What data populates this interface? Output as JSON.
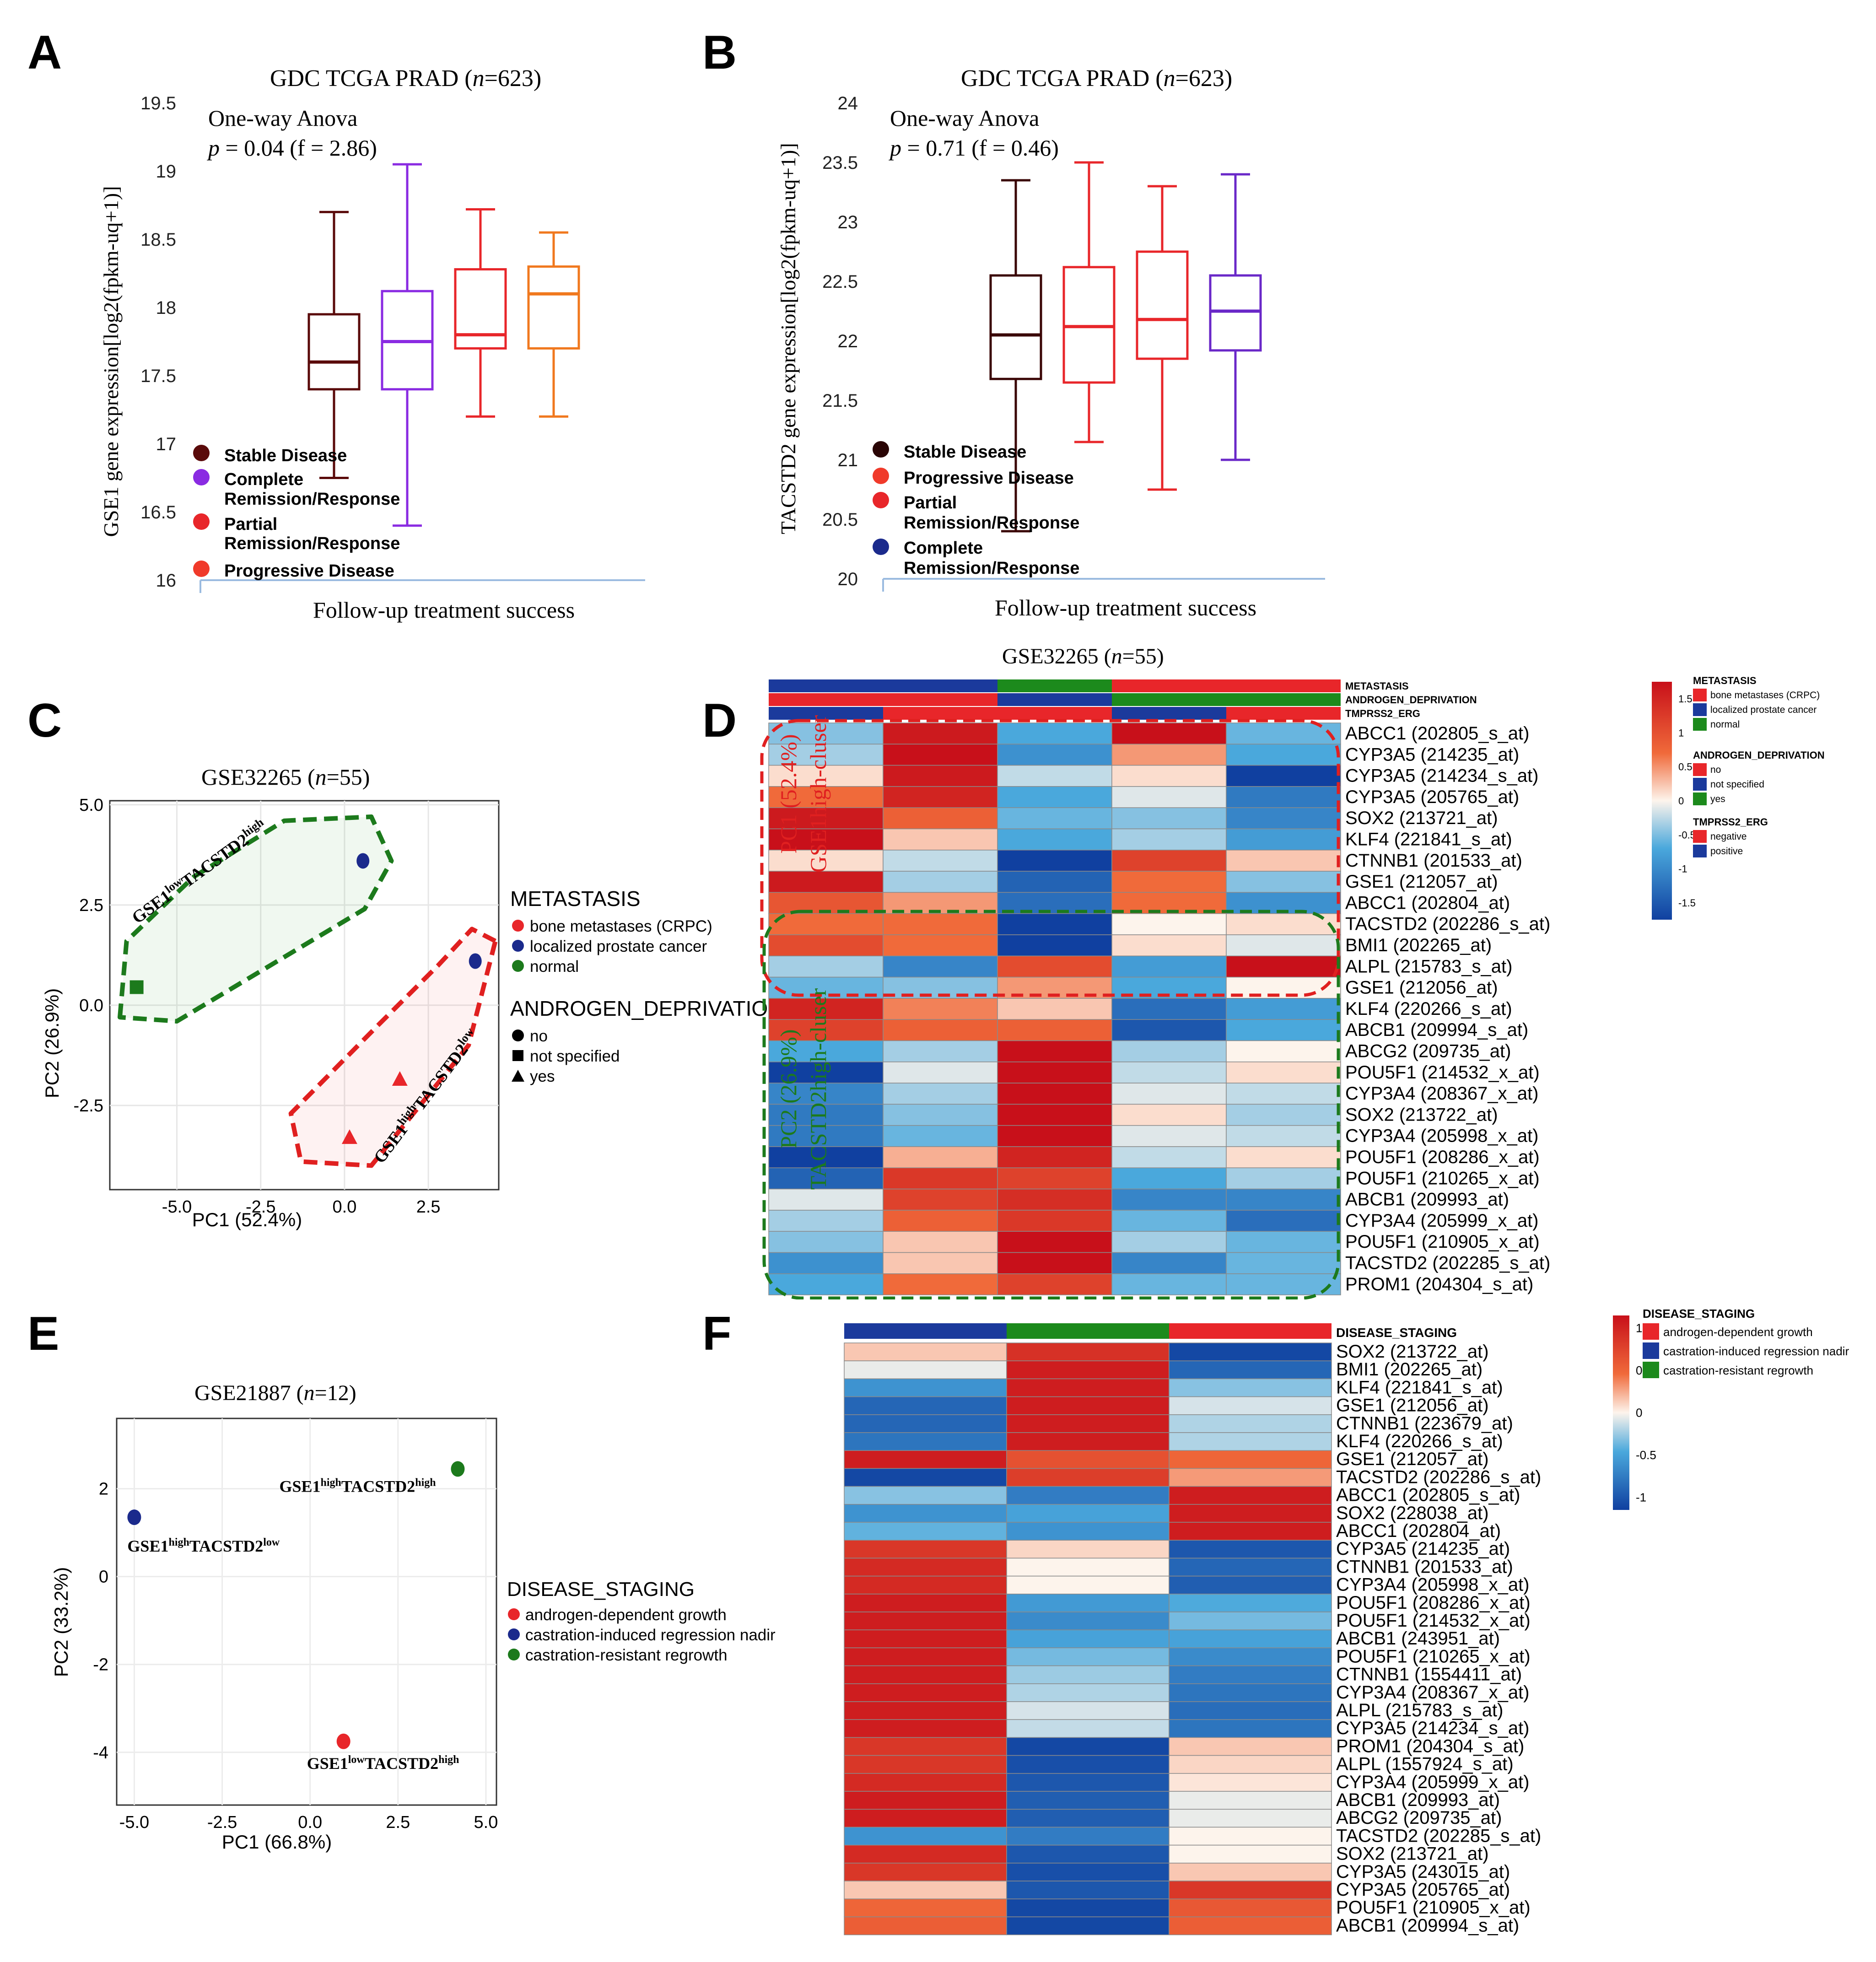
{
  "colors": {
    "brown": "#5a0a0a",
    "purple": "#8a2be2",
    "red": "#e8262a",
    "orange": "#f0781e",
    "blue": "#1b2a8c",
    "green": "#1c7a1c",
    "darkred": "#c0161a",
    "hmred": "#c8101a",
    "hmblue": "#1040a0"
  },
  "panels": {
    "A": {
      "letter": "A",
      "title_main": "GDC TCGA PRAD (",
      "title_n": "n",
      "title_end": "=623)",
      "anova_line1": "One-way Anova",
      "anova_p": "p",
      "anova_val": " = 0.04 (f = 2.86)",
      "xlabel": "Follow-up treatment success",
      "ylabel": "GSE1 gene expression[log2(fpkm-uq+1)]",
      "yticks": [
        "19.5",
        "19",
        "18.5",
        "18",
        "17.5",
        "17",
        "16.5",
        "16"
      ],
      "legend": [
        "Stable Disease",
        "Complete",
        "Remission/Response",
        "Partial",
        "Remission/Response",
        "Progressive Disease"
      ]
    },
    "B": {
      "letter": "B",
      "title_main": "GDC TCGA PRAD (",
      "title_n": "n",
      "title_end": "=623)",
      "anova_line1": "One-way Anova",
      "anova_p": "p",
      "anova_val": " = 0.71 (f = 0.46)",
      "xlabel": "Follow-up treatment success",
      "ylabel": "TACSTD2 gene expression[log2(fpkm-uq+1)]",
      "yticks": [
        "24",
        "23.5",
        "23",
        "22.5",
        "22",
        "21.5",
        "21",
        "20.5",
        "20"
      ],
      "legend": [
        "Stable Disease",
        "Progressive Disease",
        "Partial",
        "Remission/Response",
        "Complete",
        "Remission/Response"
      ]
    },
    "C": {
      "letter": "C",
      "title_main": "GSE32265 (",
      "title_n": "n",
      "title_end": "=55)",
      "xlabel": "PC1 (52.4%)",
      "ylabel": "PC2 (26.9%)",
      "xticks": [
        "-5.0",
        "-2.5",
        "0.0",
        "2.5"
      ],
      "yticks": [
        "5.0",
        "2.5",
        "0.0",
        "-2.5"
      ],
      "green_label": "GSE1lowTACSTD2high",
      "red_label": "GSE1highTACSTD2low",
      "legend_title1": "METASTASIS",
      "legend1": [
        "bone metastases (CRPC)",
        "localized prostate cancer",
        "normal"
      ],
      "legend_title2": "ANDROGEN_DEPRIVATION",
      "legend2": [
        "no",
        "not specified",
        "yes"
      ]
    },
    "D": {
      "letter": "D",
      "title_main": "GSE32265 (",
      "title_n": "n",
      "title_end": "=55)",
      "annot_rows": [
        "METASTASIS",
        "ANDROGEN_DEPRIVATION",
        "TMPRSS2_ERG"
      ],
      "genes": [
        "ABCC1 (202805_s_at)",
        "CYP3A5 (214235_at)",
        "CYP3A5 (214234_s_at)",
        "CYP3A5 (205765_at)",
        "SOX2 (213721_at)",
        "KLF4 (221841_s_at)",
        "CTNNB1 (201533_at)",
        "GSE1 (212057_at)",
        "ABCC1 (202804_at)",
        "TACSTD2 (202286_s_at)",
        "BMI1 (202265_at)",
        "ALPL (215783_s_at)",
        "GSE1 (212056_at)",
        "KLF4 (220266_s_at)",
        "ABCB1 (209994_s_at)",
        "ABCG2 (209735_at)",
        "POU5F1 (214532_x_at)",
        "CYP3A4 (208367_x_at)",
        "SOX2 (213722_at)",
        "CYP3A4 (205998_x_at)",
        "POU5F1 (208286_x_at)",
        "POU5F1 (210265_x_at)",
        "ABCB1 (209993_at)",
        "CYP3A4 (205999_x_at)",
        "POU5F1 (210905_x_at)",
        "TACSTD2 (202285_s_at)",
        "PROM1 (204304_s_at)"
      ],
      "pc1_label": "PC1 (52.4%)",
      "pc1_sub": "GSE1high-cluser",
      "pc2_label": "PC2 (26.9%)",
      "pc2_sub": "TACSTD2high-cluser",
      "scale_ticks": [
        "1.5",
        "1",
        "0.5",
        "0",
        "-0.5",
        "-1",
        "-1.5"
      ],
      "legend_meta_title": "METASTASIS",
      "legend_meta": [
        "bone metastases (CRPC)",
        "localized prostate cancer",
        "normal"
      ],
      "legend_andr_title": "ANDROGEN_DEPRIVATION",
      "legend_andr": [
        "no",
        "not specified",
        "yes"
      ],
      "legend_tmp_title": "TMPRSS2_ERG",
      "legend_tmp": [
        "negative",
        "positive"
      ]
    },
    "E": {
      "letter": "E",
      "title_main": "GSE21887 (",
      "title_n": "n",
      "title_end": "=12)",
      "xlabel": "PC1 (66.8%)",
      "ylabel": "PC2 (33.2%)",
      "xticks": [
        "-5.0",
        "-2.5",
        "0.0",
        "2.5",
        "5.0"
      ],
      "yticks": [
        "2",
        "0",
        "-2",
        "-4"
      ],
      "point_labels": [
        "GSE1highTACSTD2high",
        "GSE1highTACSTD2low",
        "GSE1lowTACSTD2high"
      ],
      "legend_title": "DISEASE_STAGING",
      "legend": [
        "androgen-dependent growth",
        "castration-induced regression nadir",
        "castration-resistant regrowth"
      ]
    },
    "F": {
      "letter": "F",
      "annot_row": "DISEASE_STAGING",
      "genes": [
        "SOX2 (213722_at)",
        "BMI1 (202265_at)",
        "KLF4 (221841_s_at)",
        "GSE1 (212056_at)",
        "CTNNB1 (223679_at)",
        "KLF4 (220266_s_at)",
        "GSE1 (212057_at)",
        "TACSTD2 (202286_s_at)",
        "ABCC1 (202805_s_at)",
        "SOX2 (228038_at)",
        "ABCC1 (202804_at)",
        "CYP3A5 (214235_at)",
        "CTNNB1 (201533_at)",
        "CYP3A4 (205998_x_at)",
        "POU5F1 (208286_x_at)",
        "POU5F1 (214532_x_at)",
        "ABCB1 (243951_at)",
        "POU5F1 (210265_x_at)",
        "CTNNB1 (1554411_at)",
        "CYP3A4 (208367_x_at)",
        "ALPL (215783_s_at)",
        "CYP3A5 (214234_s_at)",
        "PROM1 (204304_s_at)",
        "ALPL (1557924_s_at)",
        "CYP3A4 (205999_x_at)",
        "ABCB1 (209993_at)",
        "ABCG2 (209735_at)",
        "TACSTD2 (202285_s_at)",
        "SOX2 (213721_at)",
        "CYP3A5 (243015_at)",
        "CYP3A5 (205765_at)",
        "POU5F1 (210905_x_at)",
        "ABCB1 (209994_s_at)"
      ],
      "scale_ticks": [
        "1",
        "0.5",
        "0",
        "-0.5",
        "-1"
      ],
      "legend_title": "DISEASE_STAGING",
      "legend": [
        "androgen-dependent growth",
        "castration-induced regression nadir",
        "castration-resistant regrowth"
      ]
    }
  },
  "chart_data": [
    {
      "panel": "A",
      "type": "box",
      "title": "GDC TCGA PRAD (n=623)",
      "xlabel": "Follow-up treatment success",
      "ylabel": "GSE1 gene expression[log2(fpkm-uq+1)]",
      "ylim": [
        16,
        19.5
      ],
      "series": [
        {
          "name": "Stable Disease",
          "min": 16.75,
          "q1": 17.4,
          "median": 17.6,
          "q3": 17.95,
          "max": 18.7
        },
        {
          "name": "Complete Remission/Response",
          "min": 16.4,
          "q1": 17.4,
          "median": 17.75,
          "q3": 18.12,
          "max": 19.05
        },
        {
          "name": "Partial Remission/Response",
          "min": 17.2,
          "q1": 17.7,
          "median": 17.8,
          "q3": 18.28,
          "max": 18.72
        },
        {
          "name": "Progressive Disease",
          "min": 17.2,
          "q1": 17.7,
          "median": 18.1,
          "q3": 18.3,
          "max": 18.55
        }
      ]
    },
    {
      "panel": "B",
      "type": "box",
      "title": "GDC TCGA PRAD (n=623)",
      "xlabel": "Follow-up treatment success",
      "ylabel": "TACSTD2 gene expression[log2(fpkm-uq+1)]",
      "ylim": [
        20,
        24
      ],
      "series": [
        {
          "name": "Stable Disease",
          "min": 20.4,
          "q1": 21.68,
          "median": 22.05,
          "q3": 22.55,
          "max": 23.35
        },
        {
          "name": "Progressive Disease",
          "min": 21.15,
          "q1": 21.65,
          "median": 22.12,
          "q3": 22.62,
          "max": 23.5
        },
        {
          "name": "Partial Remission/Response",
          "min": 20.75,
          "q1": 21.85,
          "median": 22.18,
          "q3": 22.75,
          "max": 23.3
        },
        {
          "name": "Complete Remission/Response",
          "min": 21.0,
          "q1": 21.92,
          "median": 22.25,
          "q3": 22.55,
          "max": 23.4
        }
      ]
    },
    {
      "panel": "C",
      "type": "scatter",
      "title": "GSE32265 (n=55)",
      "xlabel": "PC1 (52.4%)",
      "ylabel": "PC2 (26.9%)",
      "xlim": [
        -7,
        4.6
      ],
      "ylim": [
        -4.6,
        5.1
      ],
      "points": [
        {
          "x": 0.55,
          "y": 3.6,
          "metastasis": "localized prostate cancer",
          "androgen": "no"
        },
        {
          "x": 3.9,
          "y": 1.1,
          "metastasis": "localized prostate cancer",
          "androgen": "no"
        },
        {
          "x": -6.2,
          "y": 0.45,
          "metastasis": "normal",
          "androgen": "not specified"
        },
        {
          "x": 1.65,
          "y": -1.85,
          "metastasis": "bone metastases (CRPC)",
          "androgen": "yes"
        },
        {
          "x": 0.15,
          "y": -3.3,
          "metastasis": "bone metastases (CRPC)",
          "androgen": "yes"
        }
      ]
    },
    {
      "panel": "D",
      "type": "heatmap",
      "title": "GSE32265 (n=55)",
      "scale": [
        -1.5,
        1.5
      ],
      "annotations": {
        "METASTASIS": [
          "localized prostate cancer",
          "localized prostate cancer",
          "normal",
          "bone metastases (CRPC)",
          "bone metastases (CRPC)"
        ],
        "ANDROGEN_DEPRIVATION": [
          "no",
          "no",
          "not specified",
          "yes",
          "yes"
        ],
        "TMPRSS2_ERG": [
          "positive",
          "negative",
          "negative",
          "positive",
          "negative"
        ]
      },
      "values": [
        [
          -0.4,
          1.4,
          -0.6,
          1.5,
          -0.5
        ],
        [
          -0.3,
          1.6,
          -0.8,
          0.4,
          -0.6
        ],
        [
          0.1,
          1.4,
          -0.2,
          0.1,
          -1.5
        ],
        [
          0.6,
          1.3,
          -0.6,
          -0.1,
          -1.0
        ],
        [
          1.4,
          0.7,
          -0.5,
          -0.4,
          -0.9
        ],
        [
          1.7,
          0.2,
          -0.6,
          -0.3,
          -0.7
        ],
        [
          0.1,
          -0.2,
          -1.6,
          1.0,
          0.2
        ],
        [
          1.4,
          -0.3,
          -1.2,
          0.6,
          -0.4
        ],
        [
          0.8,
          0.4,
          -1.1,
          0.6,
          -0.8
        ],
        [
          0.6,
          0.6,
          -1.6,
          0.0,
          0.1
        ],
        [
          0.9,
          0.6,
          -1.6,
          0.1,
          -0.1
        ],
        [
          -0.3,
          -0.9,
          0.9,
          -0.7,
          1.6
        ],
        [
          -0.5,
          -0.4,
          0.4,
          -0.6,
          0.0
        ],
        [
          1.3,
          0.5,
          0.2,
          -1.1,
          -0.7
        ],
        [
          1.0,
          0.7,
          0.7,
          -1.3,
          -0.6
        ],
        [
          -0.6,
          -0.3,
          1.5,
          -0.3,
          0.0
        ],
        [
          -1.6,
          -0.1,
          1.6,
          -0.2,
          0.1
        ],
        [
          -0.9,
          -0.3,
          1.8,
          -0.1,
          -0.2
        ],
        [
          -1.0,
          -0.4,
          1.6,
          0.1,
          -0.3
        ],
        [
          -1.0,
          -0.5,
          1.7,
          -0.1,
          -0.2
        ],
        [
          -1.5,
          0.3,
          1.3,
          -0.2,
          0.1
        ],
        [
          -1.2,
          1.1,
          1.0,
          -0.6,
          -0.3
        ],
        [
          -0.1,
          1.0,
          1.2,
          -0.9,
          -0.9
        ],
        [
          -0.3,
          0.7,
          1.1,
          -0.5,
          -1.1
        ],
        [
          -0.4,
          0.2,
          1.5,
          -0.3,
          -0.5
        ],
        [
          -0.8,
          0.2,
          1.5,
          -0.9,
          -0.5
        ],
        [
          -0.6,
          0.6,
          1.0,
          -0.5,
          -0.5
        ]
      ]
    },
    {
      "panel": "E",
      "type": "scatter",
      "title": "GSE21887 (n=12)",
      "xlabel": "PC1 (66.8%)",
      "ylabel": "PC2 (33.2%)",
      "xlim": [
        -5.5,
        5.3
      ],
      "ylim": [
        -5.2,
        3.6
      ],
      "points": [
        {
          "x": 4.2,
          "y": 2.45,
          "staging": "castration-resistant regrowth"
        },
        {
          "x": -5.0,
          "y": 1.35,
          "staging": "castration-induced regression nadir"
        },
        {
          "x": 0.95,
          "y": -3.75,
          "staging": "androgen-dependent growth"
        }
      ]
    },
    {
      "panel": "F",
      "type": "heatmap",
      "title": "",
      "scale": [
        -1.15,
        1.15
      ],
      "annotations": {
        "DISEASE_STAGING": [
          "castration-induced regression nadir",
          "castration-resistant regrowth",
          "androgen-dependent growth"
        ]
      },
      "values": [
        [
          0.15,
          0.9,
          -1.1
        ],
        [
          -0.05,
          1.05,
          -0.9
        ],
        [
          -0.6,
          1.05,
          -0.3
        ],
        [
          -0.9,
          1.05,
          -0.1
        ],
        [
          -0.9,
          1.05,
          -0.2
        ],
        [
          -0.8,
          1.05,
          -0.2
        ],
        [
          1.05,
          0.65,
          0.5
        ],
        [
          -1.1,
          0.8,
          0.3
        ],
        [
          -0.3,
          -0.75,
          1.05
        ],
        [
          -0.6,
          -0.5,
          1.05
        ],
        [
          -0.4,
          -0.6,
          1.05
        ],
        [
          0.85,
          0.1,
          -1.0
        ],
        [
          0.95,
          0.0,
          -0.9
        ],
        [
          0.95,
          0.0,
          -0.95
        ],
        [
          1.05,
          -0.55,
          -0.45
        ],
        [
          1.05,
          -0.65,
          -0.35
        ],
        [
          1.05,
          -0.5,
          -0.5
        ],
        [
          1.05,
          -0.35,
          -0.65
        ],
        [
          1.05,
          -0.25,
          -0.75
        ],
        [
          1.05,
          -0.2,
          -0.8
        ],
        [
          1.05,
          -0.1,
          -0.85
        ],
        [
          1.05,
          -0.15,
          -0.8
        ],
        [
          0.85,
          -1.1,
          0.15
        ],
        [
          0.85,
          -1.05,
          0.1
        ],
        [
          0.95,
          -1.0,
          0.05
        ],
        [
          1.05,
          -0.95,
          -0.05
        ],
        [
          1.05,
          -0.95,
          -0.05
        ],
        [
          -0.6,
          -0.75,
          0.0
        ],
        [
          0.95,
          -1.0,
          0.0
        ],
        [
          0.85,
          -1.05,
          0.15
        ],
        [
          0.15,
          -1.0,
          0.85
        ],
        [
          0.5,
          -1.1,
          0.6
        ],
        [
          0.55,
          -1.1,
          0.55
        ]
      ]
    }
  ]
}
